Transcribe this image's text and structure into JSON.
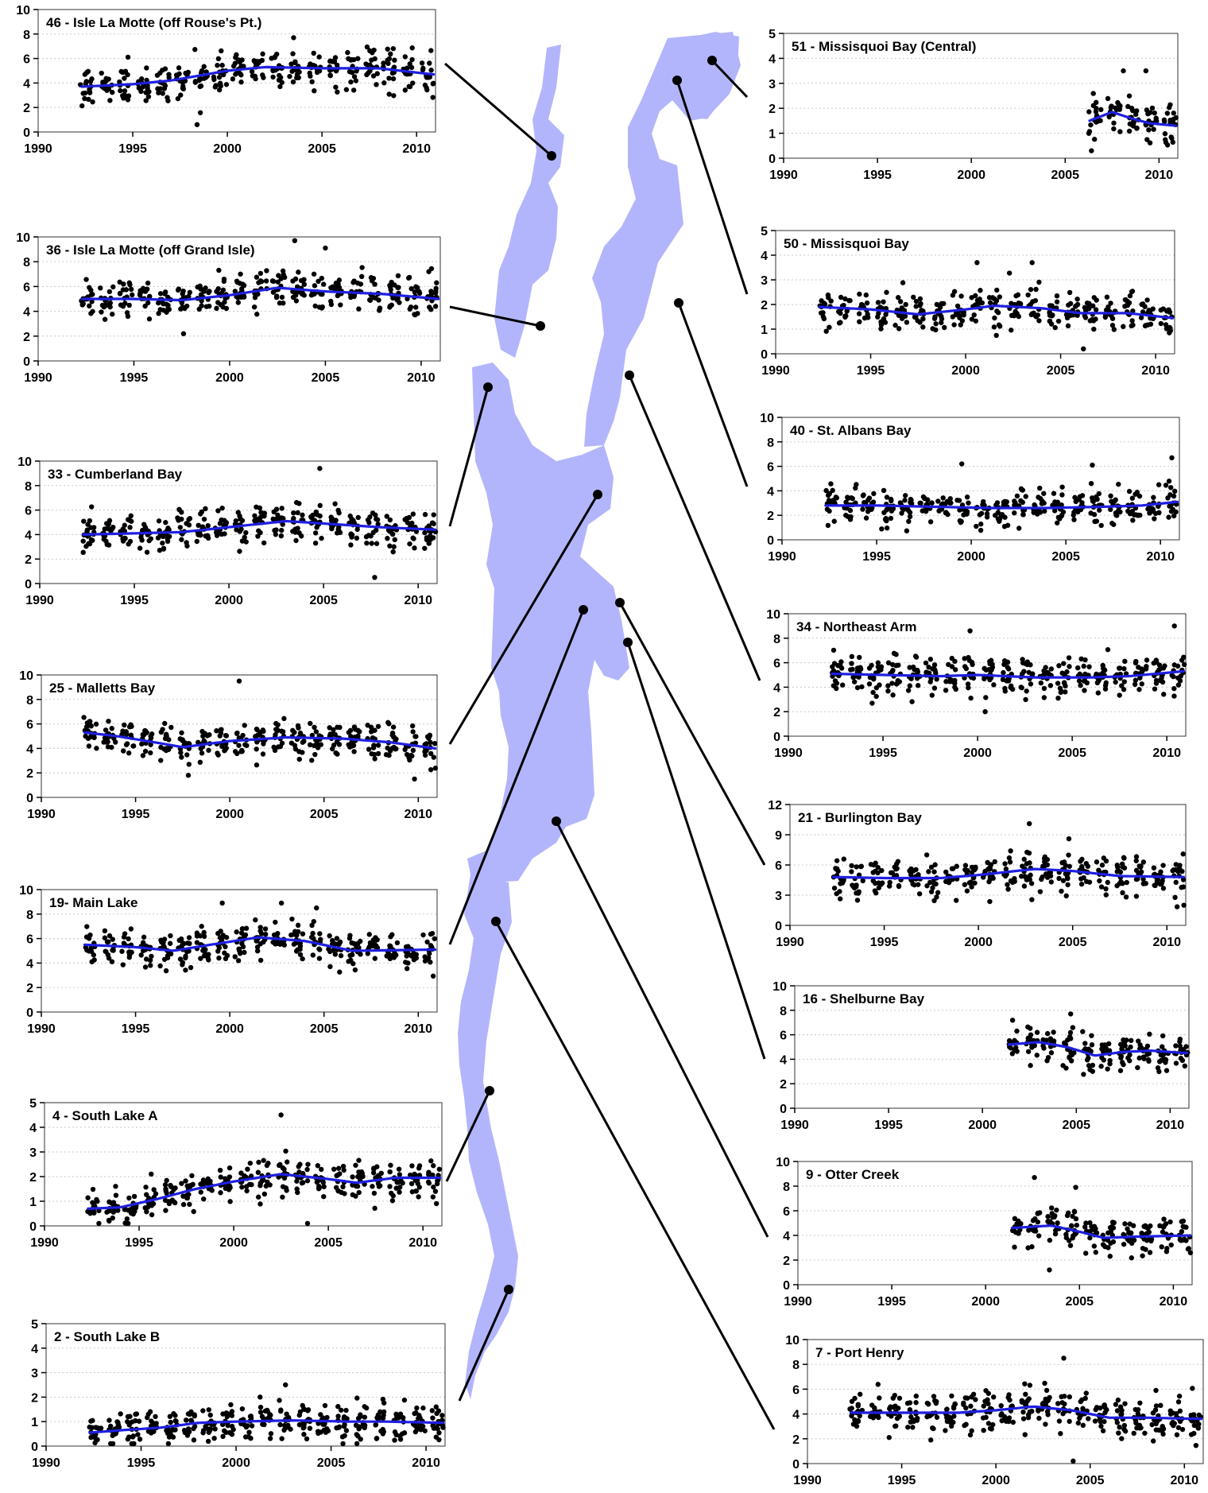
{
  "colors": {
    "lake": "#b3b5fc",
    "trend": "#1f1fe0",
    "points": "#000000",
    "grid": "#c8c8c8"
  },
  "chart_data": [
    {
      "type": "scatter",
      "title": "46 - Isle La Motte (off Rouse's Pt.)",
      "xlim": [
        1990,
        2011
      ],
      "xticks": [
        1990,
        1995,
        2000,
        2005,
        2010
      ],
      "ylim": [
        0,
        10
      ],
      "yticks": [
        0,
        2,
        4,
        6,
        8,
        10
      ],
      "data_range": [
        1992.3,
        2010.9
      ],
      "trend": [
        [
          1992.3,
          3.7
        ],
        [
          1995,
          3.9
        ],
        [
          1997,
          4.2
        ],
        [
          2000,
          5.0
        ],
        [
          2002,
          5.3
        ],
        [
          2005,
          5.2
        ],
        [
          2008,
          5.2
        ],
        [
          2010.9,
          4.7
        ]
      ],
      "annotations": [
        [
          1998.4,
          0.6
        ],
        [
          2003.5,
          7.7
        ]
      ]
    },
    {
      "type": "scatter",
      "title": "36 - Isle La Motte (off Grand Isle)",
      "xlim": [
        1990,
        2011
      ],
      "xticks": [
        1990,
        1995,
        2000,
        2005,
        2010
      ],
      "ylim": [
        0,
        10
      ],
      "yticks": [
        0,
        2,
        4,
        6,
        8,
        10
      ],
      "data_range": [
        1992.3,
        2010.9
      ],
      "trend": [
        [
          1992.3,
          5.0
        ],
        [
          1995,
          5.0
        ],
        [
          1997.5,
          4.9
        ],
        [
          2000,
          5.3
        ],
        [
          2002.5,
          5.9
        ],
        [
          2005,
          5.6
        ],
        [
          2008,
          5.4
        ],
        [
          2010.9,
          5.0
        ]
      ],
      "annotations": [
        [
          2003.4,
          9.7
        ],
        [
          2005,
          9.1
        ]
      ]
    },
    {
      "type": "scatter",
      "title": "33 - Cumberland Bay",
      "xlim": [
        1990,
        2011
      ],
      "xticks": [
        1990,
        1995,
        2000,
        2005,
        2010
      ],
      "ylim": [
        0,
        10
      ],
      "yticks": [
        0,
        2,
        4,
        6,
        8,
        10
      ],
      "data_range": [
        1992.3,
        2010.9
      ],
      "trend": [
        [
          1992.3,
          4.0
        ],
        [
          1995,
          4.1
        ],
        [
          1997.5,
          4.2
        ],
        [
          2000,
          4.6
        ],
        [
          2003,
          5.1
        ],
        [
          2006,
          4.8
        ],
        [
          2008,
          4.6
        ],
        [
          2010.9,
          4.4
        ]
      ],
      "annotations": [
        [
          2004.8,
          9.4
        ],
        [
          2007.7,
          0.5
        ]
      ]
    },
    {
      "type": "scatter",
      "title": "25 - Malletts Bay",
      "xlim": [
        1990,
        2011
      ],
      "xticks": [
        1990,
        1995,
        2000,
        2005,
        2010
      ],
      "ylim": [
        0,
        10
      ],
      "yticks": [
        0,
        2,
        4,
        6,
        8,
        10
      ],
      "data_range": [
        1992.3,
        2010.9
      ],
      "trend": [
        [
          1992.3,
          5.3
        ],
        [
          1994,
          5.0
        ],
        [
          1996,
          4.5
        ],
        [
          1997.5,
          4.1
        ],
        [
          2000,
          4.6
        ],
        [
          2003,
          4.9
        ],
        [
          2006,
          4.8
        ],
        [
          2008.5,
          4.5
        ],
        [
          2010.9,
          4.0
        ]
      ],
      "annotations": [
        [
          2000.5,
          9.5
        ],
        [
          2009.8,
          1.5
        ]
      ]
    },
    {
      "type": "scatter",
      "title": "19- Main Lake",
      "xlim": [
        1990,
        2011
      ],
      "xticks": [
        1990,
        1995,
        2000,
        2005,
        2010
      ],
      "ylim": [
        0,
        10
      ],
      "yticks": [
        0,
        2,
        4,
        6,
        8,
        10
      ],
      "data_range": [
        1992.3,
        2010.9
      ],
      "trend": [
        [
          1992.3,
          5.5
        ],
        [
          1995,
          5.3
        ],
        [
          1997,
          5.0
        ],
        [
          1999,
          5.5
        ],
        [
          2001.5,
          6.1
        ],
        [
          2004,
          5.8
        ],
        [
          2006.5,
          5.0
        ],
        [
          2010.9,
          5.1
        ]
      ],
      "annotations": [
        [
          1999.6,
          8.9
        ],
        [
          2004.6,
          8.5
        ]
      ]
    },
    {
      "type": "scatter",
      "title": "4 - South Lake A",
      "xlim": [
        1990,
        2011
      ],
      "xticks": [
        1990,
        1995,
        2000,
        2005,
        2010
      ],
      "ylim": [
        0,
        5
      ],
      "yticks": [
        0,
        1,
        2,
        3,
        4,
        5
      ],
      "data_range": [
        1992.3,
        2010.9
      ],
      "trend": [
        [
          1992.3,
          0.7
        ],
        [
          1994,
          0.75
        ],
        [
          1996,
          1.1
        ],
        [
          1998,
          1.5
        ],
        [
          2000,
          1.8
        ],
        [
          2002.5,
          2.1
        ],
        [
          2005,
          1.9
        ],
        [
          2006.5,
          1.75
        ],
        [
          2008.5,
          1.95
        ],
        [
          2010.9,
          1.95
        ]
      ],
      "annotations": [
        [
          2002.5,
          4.5
        ],
        [
          2003.9,
          0.1
        ]
      ]
    },
    {
      "type": "scatter",
      "title": "2 - South Lake B",
      "xlim": [
        1990,
        2011
      ],
      "xticks": [
        1990,
        1995,
        2000,
        2005,
        2010
      ],
      "ylim": [
        0,
        5
      ],
      "yticks": [
        0,
        1,
        2,
        3,
        4,
        5
      ],
      "data_range": [
        1992.3,
        2010.9
      ],
      "trend": [
        [
          1992.3,
          0.55
        ],
        [
          1994,
          0.65
        ],
        [
          1996,
          0.75
        ],
        [
          1998,
          0.95
        ],
        [
          2000,
          1.0
        ],
        [
          2003,
          1.05
        ],
        [
          2006,
          1.0
        ],
        [
          2008,
          1.0
        ],
        [
          2010.9,
          0.95
        ]
      ],
      "annotations": [
        [
          2002.6,
          2.5
        ]
      ]
    },
    {
      "type": "scatter",
      "title": "51 - Missisquoi Bay (Central)",
      "xlim": [
        1990,
        2011
      ],
      "xticks": [
        1990,
        1995,
        2000,
        2005,
        2010
      ],
      "ylim": [
        0,
        5
      ],
      "yticks": [
        0,
        1,
        2,
        3,
        4,
        5
      ],
      "data_range": [
        2006.3,
        2010.9
      ],
      "trend": [
        [
          2006.3,
          1.5
        ],
        [
          2007.5,
          1.85
        ],
        [
          2008.5,
          1.6
        ],
        [
          2009.5,
          1.4
        ],
        [
          2010.9,
          1.3
        ]
      ],
      "annotations": [
        [
          2008.1,
          3.5
        ],
        [
          2009.3,
          3.5
        ],
        [
          2006.4,
          0.3
        ]
      ]
    },
    {
      "type": "scatter",
      "title": "50 - Missisquoi Bay",
      "xlim": [
        1990,
        2011
      ],
      "xticks": [
        1990,
        1995,
        2000,
        2005,
        2010
      ],
      "ylim": [
        0,
        5
      ],
      "yticks": [
        0,
        1,
        2,
        3,
        4,
        5
      ],
      "data_range": [
        1992.3,
        2010.9
      ],
      "trend": [
        [
          1992.3,
          1.9
        ],
        [
          1995,
          1.8
        ],
        [
          1997.5,
          1.6
        ],
        [
          2000,
          1.8
        ],
        [
          2001.5,
          1.95
        ],
        [
          2004,
          1.85
        ],
        [
          2006,
          1.65
        ],
        [
          2008.5,
          1.65
        ],
        [
          2010.9,
          1.45
        ]
      ],
      "annotations": [
        [
          2000.6,
          3.7
        ],
        [
          2003.5,
          3.7
        ],
        [
          2006.2,
          0.2
        ]
      ]
    },
    {
      "type": "scatter",
      "title": "40 - St. Albans Bay",
      "xlim": [
        1990,
        2011
      ],
      "xticks": [
        1990,
        1995,
        2000,
        2005,
        2010
      ],
      "ylim": [
        0,
        10
      ],
      "yticks": [
        0,
        2,
        4,
        6,
        8,
        10
      ],
      "data_range": [
        1992.3,
        2010.9
      ],
      "trend": [
        [
          1992.3,
          2.8
        ],
        [
          1995,
          2.8
        ],
        [
          1998,
          2.7
        ],
        [
          2001,
          2.6
        ],
        [
          2004,
          2.6
        ],
        [
          2007,
          2.7
        ],
        [
          2009,
          2.8
        ],
        [
          2010.9,
          3.1
        ]
      ],
      "annotations": [
        [
          1999.5,
          6.2
        ],
        [
          2006.4,
          6.1
        ],
        [
          2010.6,
          6.7
        ]
      ]
    },
    {
      "type": "scatter",
      "title": "34 - Northeast Arm",
      "xlim": [
        1990,
        2011
      ],
      "xticks": [
        1990,
        1995,
        2000,
        2005,
        2010
      ],
      "ylim": [
        0,
        10
      ],
      "yticks": [
        0,
        2,
        4,
        6,
        8,
        10
      ],
      "data_range": [
        1992.3,
        2010.9
      ],
      "trend": [
        [
          1992.3,
          5.1
        ],
        [
          1995,
          5.0
        ],
        [
          1998,
          4.9
        ],
        [
          2000,
          5.0
        ],
        [
          2003,
          4.8
        ],
        [
          2006,
          4.8
        ],
        [
          2008,
          4.9
        ],
        [
          2010.9,
          5.3
        ]
      ],
      "annotations": [
        [
          1999.6,
          8.6
        ],
        [
          2000.4,
          2.0
        ],
        [
          2010.4,
          9.0
        ]
      ]
    },
    {
      "type": "scatter",
      "title": "21 - Burlington Bay",
      "xlim": [
        1990,
        2011
      ],
      "xticks": [
        1990,
        1995,
        2000,
        2005,
        2010
      ],
      "ylim": [
        0,
        12
      ],
      "yticks": [
        0,
        3,
        6,
        9,
        12
      ],
      "data_range": [
        1992.3,
        2010.9
      ],
      "trend": [
        [
          1992.3,
          4.8
        ],
        [
          1995,
          4.7
        ],
        [
          1998,
          4.7
        ],
        [
          2000,
          5.0
        ],
        [
          2003,
          5.6
        ],
        [
          2005,
          5.4
        ],
        [
          2007.5,
          4.9
        ],
        [
          2010.9,
          4.8
        ]
      ],
      "annotations": [
        [
          2002.7,
          10.1
        ],
        [
          2004.8,
          8.6
        ],
        [
          2010.9,
          2.0
        ]
      ]
    },
    {
      "type": "scatter",
      "title": "16 - Shelburne Bay",
      "xlim": [
        1990,
        2011
      ],
      "xticks": [
        1990,
        1995,
        2000,
        2005,
        2010
      ],
      "ylim": [
        0,
        10
      ],
      "yticks": [
        0,
        2,
        4,
        6,
        8,
        10
      ],
      "data_range": [
        2001.4,
        2010.9
      ],
      "trend": [
        [
          2001.4,
          5.2
        ],
        [
          2003,
          5.4
        ],
        [
          2004.5,
          5.0
        ],
        [
          2006,
          4.3
        ],
        [
          2007.5,
          4.6
        ],
        [
          2009,
          4.7
        ],
        [
          2010.9,
          4.5
        ]
      ],
      "annotations": [
        [
          2004.7,
          7.7
        ]
      ]
    },
    {
      "type": "scatter",
      "title": "9 - Otter Creek",
      "xlim": [
        1990,
        2011
      ],
      "xticks": [
        1990,
        1995,
        2000,
        2005,
        2010
      ],
      "ylim": [
        0,
        10
      ],
      "yticks": [
        0,
        2,
        4,
        6,
        8,
        10
      ],
      "data_range": [
        2001.4,
        2010.9
      ],
      "trend": [
        [
          2001.4,
          4.6
        ],
        [
          2003.5,
          4.8
        ],
        [
          2005,
          4.3
        ],
        [
          2006.3,
          3.8
        ],
        [
          2008,
          3.9
        ],
        [
          2010.9,
          4.0
        ]
      ],
      "annotations": [
        [
          2002.6,
          8.7
        ],
        [
          2004.8,
          7.9
        ],
        [
          2003.4,
          1.2
        ]
      ]
    },
    {
      "type": "scatter",
      "title": "7 - Port Henry",
      "xlim": [
        1990,
        2011
      ],
      "xticks": [
        1990,
        1995,
        2000,
        2005,
        2010
      ],
      "ylim": [
        0,
        10
      ],
      "yticks": [
        0,
        2,
        4,
        6,
        8,
        10
      ],
      "data_range": [
        1992.3,
        2010.9
      ],
      "trend": [
        [
          1992.3,
          4.1
        ],
        [
          1995,
          4.1
        ],
        [
          1998,
          4.1
        ],
        [
          2000,
          4.3
        ],
        [
          2002,
          4.6
        ],
        [
          2004,
          4.3
        ],
        [
          2006,
          3.7
        ],
        [
          2008,
          3.7
        ],
        [
          2010.9,
          3.6
        ]
      ],
      "annotations": [
        [
          2003.6,
          8.5
        ],
        [
          2004.1,
          0.2
        ]
      ]
    }
  ]
}
